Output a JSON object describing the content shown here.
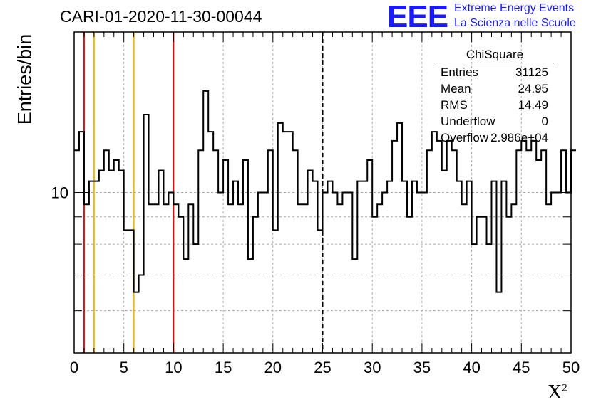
{
  "header": {
    "title": "CARI-01-2020-11-30-00044",
    "logo_text": "EEE",
    "logo_line1": "Extreme Energy Events",
    "logo_line2": "La Scienza nelle Scuole"
  },
  "stats_box": {
    "title": "ChiSquare",
    "rows": [
      {
        "label": "Entries",
        "value": "31125"
      },
      {
        "label": "Mean",
        "value": "24.95"
      },
      {
        "label": "RMS",
        "value": "14.49"
      },
      {
        "label": "Underflow",
        "value": "0"
      },
      {
        "label": "Overflow",
        "value": "2.986e+04"
      }
    ]
  },
  "colors": {
    "red_line": "#dd1111",
    "orange_line": "#f0b800",
    "logo_blue": "#1a1aff",
    "grid": "#aaaaaa"
  },
  "chart_data": {
    "type": "histogram",
    "title": "CARI-01-2020-11-30-00044",
    "xlabel": "X",
    "xlabel_sup": "2",
    "ylabel": "Entries/bin",
    "xlim": [
      0,
      50
    ],
    "ylim": [
      5,
      20
    ],
    "yscale": "log",
    "bin_width": 0.5,
    "x_ticks": [
      0,
      5,
      10,
      15,
      20,
      25,
      30,
      35,
      40,
      45,
      50
    ],
    "y_ticks": [
      10
    ],
    "grid": true,
    "vertical_lines": [
      {
        "x": 1,
        "color": "red",
        "style": "solid"
      },
      {
        "x": 2,
        "color": "orange",
        "style": "solid"
      },
      {
        "x": 6,
        "color": "orange",
        "style": "solid"
      },
      {
        "x": 10,
        "color": "red",
        "style": "solid"
      },
      {
        "x": 25,
        "color": "black",
        "style": "dashed"
      }
    ],
    "values": [
      12,
      13,
      9.5,
      10.5,
      10.5,
      11,
      12,
      11,
      11.5,
      11,
      8.5,
      8.5,
      6.5,
      7,
      14,
      9.5,
      9.5,
      11,
      9.5,
      10,
      9.5,
      9,
      7.5,
      9.5,
      8,
      12,
      15.5,
      13,
      12,
      10,
      11.5,
      9.5,
      10.5,
      9.5,
      11.5,
      7.5,
      9,
      10,
      10,
      12,
      8.5,
      13.5,
      13,
      13,
      12,
      9.5,
      9.5,
      11,
      10.5,
      8.5,
      10,
      10.5,
      10,
      9.5,
      10,
      10,
      7.5,
      10.5,
      10.5,
      11.5,
      9,
      9.5,
      10,
      10.5,
      12.5,
      13.5,
      10.5,
      9,
      10.5,
      10,
      10,
      12,
      13,
      12.5,
      11,
      12.5,
      12,
      10.5,
      9.5,
      10.5,
      8,
      9,
      9,
      8,
      10.5,
      6.5,
      10.5,
      9,
      9.5,
      12,
      12.5,
      12,
      12.5,
      11.5,
      12,
      9.5,
      10,
      10,
      12,
      10,
      12
    ]
  }
}
